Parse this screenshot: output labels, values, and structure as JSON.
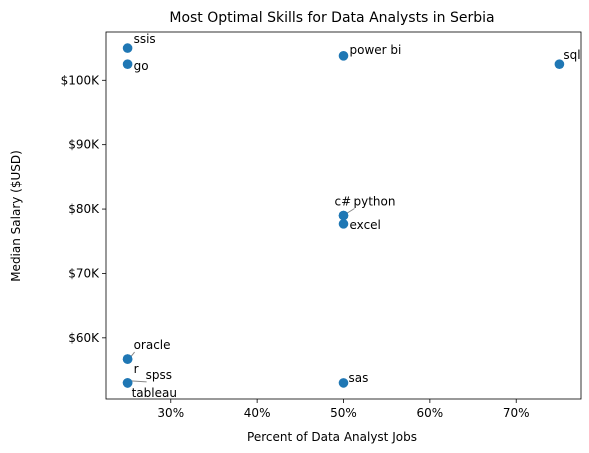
{
  "chart_data": {
    "type": "scatter",
    "title": "Most Optimal Skills for Data Analysts in Serbia",
    "xlabel": "Percent of Data Analyst Jobs",
    "ylabel": "Median Salary ($USD)",
    "xlim": [
      22.5,
      77.5
    ],
    "ylim": [
      50500,
      107500
    ],
    "x_ticks": [
      30,
      40,
      50,
      60,
      70
    ],
    "x_tick_labels": [
      "30%",
      "40%",
      "50%",
      "60%",
      "70%"
    ],
    "y_ticks": [
      60000,
      70000,
      80000,
      90000,
      100000
    ],
    "y_tick_labels": [
      "$60K",
      "$70K",
      "$80K",
      "$90K",
      "$100K"
    ],
    "grid": false,
    "color": "#1f77b4",
    "points": [
      {
        "skill": "ssis",
        "x": 25,
        "y": 105000
      },
      {
        "skill": "go",
        "x": 25,
        "y": 102500
      },
      {
        "skill": "power bi",
        "x": 50,
        "y": 103800
      },
      {
        "skill": "sql",
        "x": 75,
        "y": 102500
      },
      {
        "skill": "c#",
        "x": 50,
        "y": 79000
      },
      {
        "skill": "python",
        "x": 50,
        "y": 79000
      },
      {
        "skill": "excel",
        "x": 50,
        "y": 77700
      },
      {
        "skill": "oracle",
        "x": 25,
        "y": 56700
      },
      {
        "skill": "r",
        "x": 25,
        "y": 56700
      },
      {
        "skill": "spss",
        "x": 25,
        "y": 53000
      },
      {
        "skill": "tableau",
        "x": 25,
        "y": 53000
      },
      {
        "skill": "sas",
        "x": 50,
        "y": 53000
      }
    ]
  }
}
